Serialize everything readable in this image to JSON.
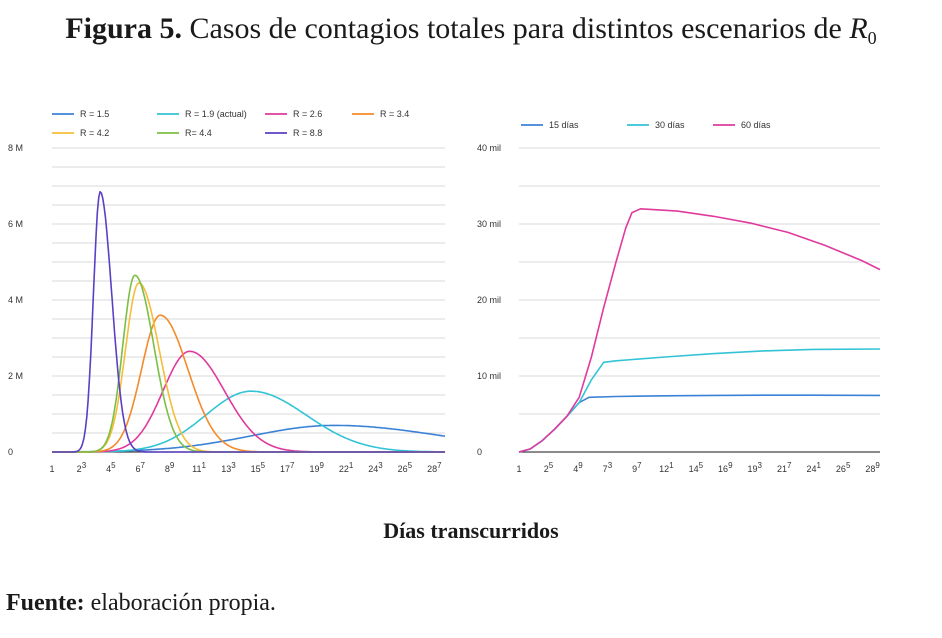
{
  "figure": {
    "label": "Figura 5.",
    "caption_text": "Casos de contagios totales para distintos escenarios de",
    "r_symbol": "R",
    "r_subscript": "0",
    "shared_xlabel": "Días transcurridos",
    "source_label": "Fuente:",
    "source_text": " elaboración propia."
  },
  "chart_data": [
    {
      "type": "line",
      "title": "",
      "xlabel": "",
      "ylabel": "",
      "x_tick_labels": [
        "1",
        "23",
        "45",
        "67",
        "89",
        "111",
        "133",
        "155",
        "177",
        "199",
        "221",
        "243",
        "265",
        "287"
      ],
      "x_ticks": [
        1,
        23,
        45,
        67,
        89,
        111,
        133,
        155,
        177,
        199,
        221,
        243,
        265,
        287
      ],
      "xlim": [
        1,
        295
      ],
      "y_tick_labels": [
        "0",
        "2 M",
        "4 M",
        "6 M",
        "8 M"
      ],
      "y_ticks": [
        0,
        2000000,
        4000000,
        6000000,
        8000000
      ],
      "ylim": [
        0,
        8000000
      ],
      "grid": true,
      "legend_position": "top",
      "series": [
        {
          "name": "R = 1.5",
          "color": "#3b82d6",
          "peak_day": 212,
          "peak": 700000,
          "width_left": 62,
          "width_right": 75
        },
        {
          "name": "R = 1.9 (actual)",
          "color": "#33c3d6",
          "peak_day": 150,
          "peak": 1600000,
          "width_left": 34,
          "width_right": 38
        },
        {
          "name": "R = 2.6",
          "color": "#e03a9e",
          "peak_day": 104,
          "peak": 2650000,
          "width_left": 20,
          "width_right": 24
        },
        {
          "name": "R = 3.4",
          "color": "#f58a2a",
          "peak_day": 82,
          "peak": 3600000,
          "width_left": 14,
          "width_right": 19
        },
        {
          "name": "R = 4.2",
          "color": "#f5bd3a",
          "peak_day": 66,
          "peak": 4450000,
          "width_left": 10,
          "width_right": 14
        },
        {
          "name": "R= 4.4",
          "color": "#7bbf45",
          "peak_day": 63,
          "peak": 4650000,
          "width_left": 9,
          "width_right": 13
        },
        {
          "name": "R = 8.8",
          "color": "#5b3fc4",
          "peak_day": 37,
          "peak": 6850000,
          "width_left": 5,
          "width_right": 8
        }
      ]
    },
    {
      "type": "line",
      "title": "",
      "xlabel": "",
      "ylabel": "",
      "x_tick_labels": [
        "1",
        "25",
        "49",
        "73",
        "97",
        "121",
        "145",
        "169",
        "193",
        "217",
        "241",
        "265",
        "289"
      ],
      "x_ticks": [
        1,
        25,
        49,
        73,
        97,
        121,
        145,
        169,
        193,
        217,
        241,
        265,
        289
      ],
      "xlim": [
        1,
        295
      ],
      "y_tick_labels": [
        "0",
        "10 mil",
        "20 mil",
        "30 mil",
        "40 mil"
      ],
      "y_ticks": [
        0,
        10000,
        20000,
        30000,
        40000
      ],
      "ylim": [
        0,
        40000
      ],
      "grid": true,
      "legend_position": "top",
      "series": [
        {
          "name": "15 días",
          "color": "#3b82d6",
          "points": [
            [
              1,
              0
            ],
            [
              10,
              400
            ],
            [
              20,
              1500
            ],
            [
              30,
              3000
            ],
            [
              40,
              4700
            ],
            [
              50,
              6500
            ],
            [
              58,
              7200
            ],
            [
              80,
              7300
            ],
            [
              120,
              7400
            ],
            [
              160,
              7450
            ],
            [
              200,
              7480
            ],
            [
              240,
              7480
            ],
            [
              295,
              7450
            ]
          ]
        },
        {
          "name": "30 días",
          "color": "#33c3d6",
          "points": [
            [
              1,
              0
            ],
            [
              10,
              400
            ],
            [
              20,
              1500
            ],
            [
              30,
              3000
            ],
            [
              40,
              4700
            ],
            [
              50,
              6500
            ],
            [
              60,
              9500
            ],
            [
              70,
              11800
            ],
            [
              80,
              12000
            ],
            [
              120,
              12500
            ],
            [
              160,
              12950
            ],
            [
              200,
              13300
            ],
            [
              240,
              13500
            ],
            [
              295,
              13550
            ]
          ]
        },
        {
          "name": "60 días",
          "color": "#e03a9e",
          "points": [
            [
              1,
              0
            ],
            [
              10,
              400
            ],
            [
              20,
              1500
            ],
            [
              30,
              3000
            ],
            [
              40,
              4700
            ],
            [
              50,
              7200
            ],
            [
              60,
              12500
            ],
            [
              70,
              19000
            ],
            [
              80,
              25000
            ],
            [
              88,
              29500
            ],
            [
              93,
              31500
            ],
            [
              100,
              32000
            ],
            [
              130,
              31700
            ],
            [
              160,
              31000
            ],
            [
              190,
              30100
            ],
            [
              220,
              28900
            ],
            [
              250,
              27200
            ],
            [
              280,
              25200
            ],
            [
              295,
              24000
            ]
          ]
        }
      ]
    }
  ]
}
